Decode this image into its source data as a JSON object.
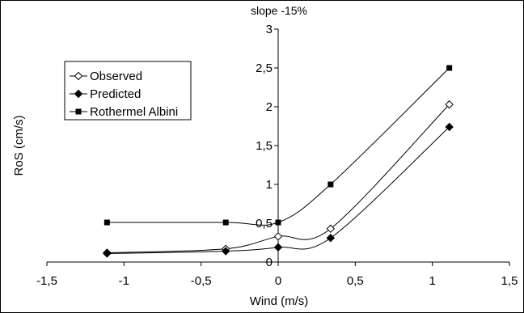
{
  "chart_data": {
    "type": "line",
    "title": "slope -15%",
    "xlabel": "Wind (m/s)",
    "ylabel": "RoS (cm/s)",
    "xlim": [
      -1.5,
      1.5
    ],
    "ylim": [
      0,
      3
    ],
    "x_ticks": [
      "-1,5",
      "-1",
      "-0,5",
      "0",
      "0,5",
      "1",
      "1,5"
    ],
    "y_ticks": [
      "0",
      "0,5",
      "1",
      "1,5",
      "2",
      "2,5",
      "3"
    ],
    "grid": false,
    "legend_position": "left",
    "series": [
      {
        "name": "Observed",
        "marker": "open-diamond",
        "color": "#000000",
        "points": [
          {
            "x": -1.11,
            "y": 0.12
          },
          {
            "x": -0.34,
            "y": 0.17
          },
          {
            "x": 0.0,
            "y": 0.33
          },
          {
            "x": 0.34,
            "y": 0.43
          },
          {
            "x": 1.11,
            "y": 2.03
          }
        ]
      },
      {
        "name": "Predicted",
        "marker": "filled-diamond",
        "color": "#000000",
        "points": [
          {
            "x": -1.11,
            "y": 0.11
          },
          {
            "x": -0.34,
            "y": 0.14
          },
          {
            "x": 0.0,
            "y": 0.19
          },
          {
            "x": 0.34,
            "y": 0.31
          },
          {
            "x": 1.11,
            "y": 1.74
          }
        ]
      },
      {
        "name": "Rothermel Albini",
        "marker": "filled-square",
        "color": "#000000",
        "points": [
          {
            "x": -1.11,
            "y": 0.51
          },
          {
            "x": -0.34,
            "y": 0.51
          },
          {
            "x": 0.0,
            "y": 0.51
          },
          {
            "x": 0.34,
            "y": 1.0
          },
          {
            "x": 1.11,
            "y": 2.5
          }
        ]
      }
    ]
  }
}
